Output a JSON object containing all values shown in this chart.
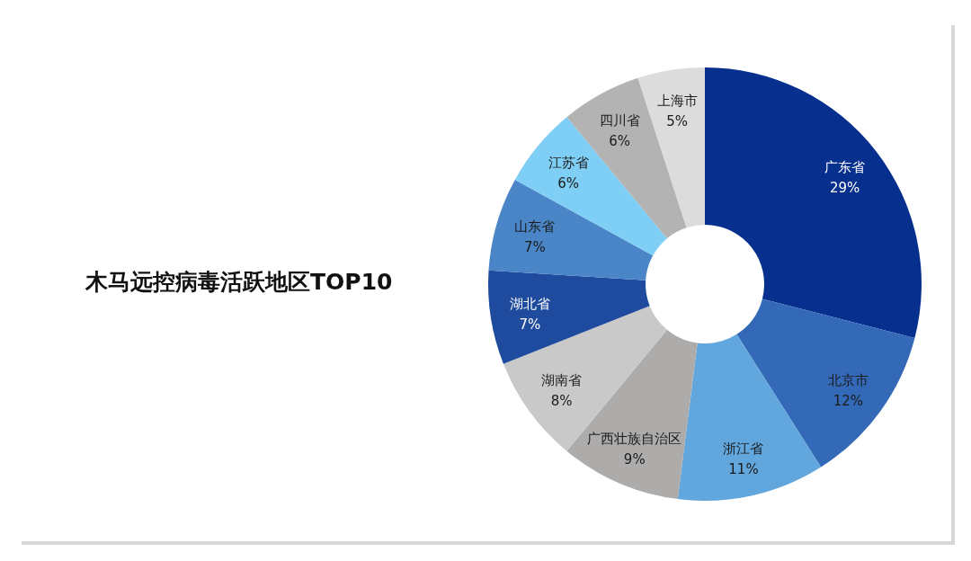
{
  "chart_data": {
    "type": "donut",
    "title": "木马远控病毒活跃地区TOP10",
    "categories": [
      "广东省",
      "北京市",
      "浙江省",
      "广西壮族自治区",
      "湖南省",
      "湖北省",
      "山东省",
      "江苏省",
      "四川省",
      "上海市"
    ],
    "values": [
      29,
      12,
      11,
      9,
      8,
      7,
      7,
      6,
      6,
      5
    ],
    "colors": [
      "#072f8e",
      "#3369b7",
      "#61a6dd",
      "#aeabab",
      "#c9c9c9",
      "#1f4b9f",
      "#4a86c7",
      "#7fcef5",
      "#b3b3b3",
      "#dcdcdc"
    ],
    "value_labels": [
      "29%",
      "12%",
      "11%",
      "9%",
      "8%",
      "7%",
      "7%",
      "6%",
      "6%",
      "5%"
    ],
    "legend": false
  }
}
